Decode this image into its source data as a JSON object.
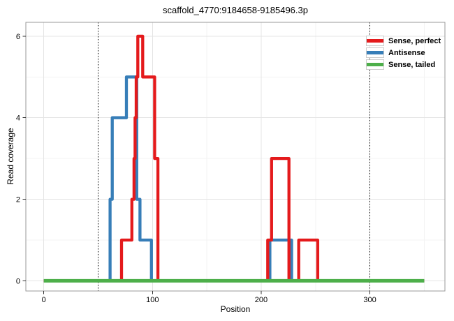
{
  "title": "scaffold_4770:9184658-9185496.3p",
  "colors": {
    "background": "#ffffff",
    "grid_major": "#e4e4e4",
    "grid_minor": "#f3f3f3",
    "panel_border": "#999999",
    "tick": "#333333",
    "text": "#000000",
    "reference_line": "#000000"
  },
  "legend": {
    "position": "top-right",
    "entries": [
      {
        "label": "Sense, perfect",
        "color": "#E41A1C"
      },
      {
        "label": "Antisense",
        "color": "#377EB8"
      },
      {
        "label": "Sense, tailed",
        "color": "#4DAF4A"
      }
    ]
  },
  "chart_data": {
    "type": "line",
    "subtype": "step-coverage-profile",
    "title": "scaffold_4770:9184658-9185496.3p",
    "xlabel": "Position",
    "ylabel": "Read coverage",
    "xlim": [
      -16.5,
      369
    ],
    "ylim": [
      -0.25,
      6.34
    ],
    "x_ticks": [
      0,
      100,
      200,
      300
    ],
    "y_ticks": [
      0,
      2,
      4,
      6
    ],
    "x_minor_gridlines": [
      50,
      150,
      250,
      350
    ],
    "y_minor_gridlines": [
      1,
      3,
      5
    ],
    "grid": true,
    "reference_vlines": {
      "positions": [
        50,
        300
      ],
      "style": "dotted"
    },
    "series": [
      {
        "name": "Sense, perfect",
        "color": "#E41A1C",
        "draw_order": 2,
        "line_width": 4.3,
        "points": [
          [
            0,
            0
          ],
          [
            71.5,
            0
          ],
          [
            71.5,
            1
          ],
          [
            81,
            1
          ],
          [
            81,
            2
          ],
          [
            83,
            2
          ],
          [
            83,
            3
          ],
          [
            84,
            3
          ],
          [
            84,
            4
          ],
          [
            85,
            4
          ],
          [
            85,
            5
          ],
          [
            86.5,
            5
          ],
          [
            86.5,
            6
          ],
          [
            91,
            6
          ],
          [
            91,
            5
          ],
          [
            102,
            5
          ],
          [
            102,
            3
          ],
          [
            105,
            3
          ],
          [
            105,
            0
          ],
          [
            206,
            0
          ],
          [
            206,
            1
          ],
          [
            209.5,
            1
          ],
          [
            209.5,
            3
          ],
          [
            225.5,
            3
          ],
          [
            225.5,
            0
          ],
          [
            234.5,
            0
          ],
          [
            234.5,
            1
          ],
          [
            252,
            1
          ],
          [
            252,
            0
          ],
          [
            350,
            0
          ]
        ]
      },
      {
        "name": "Antisense",
        "color": "#377EB8",
        "draw_order": 1,
        "line_width": 4.3,
        "points": [
          [
            0,
            0
          ],
          [
            61,
            0
          ],
          [
            61,
            2
          ],
          [
            63,
            2
          ],
          [
            63,
            4
          ],
          [
            76,
            4
          ],
          [
            76,
            5
          ],
          [
            85.5,
            5
          ],
          [
            85.5,
            2
          ],
          [
            88.5,
            2
          ],
          [
            88.5,
            1
          ],
          [
            99,
            1
          ],
          [
            99,
            0
          ],
          [
            208,
            0
          ],
          [
            208,
            1
          ],
          [
            228,
            1
          ],
          [
            228,
            0
          ],
          [
            350,
            0
          ]
        ]
      },
      {
        "name": "Sense, tailed",
        "color": "#4DAF4A",
        "draw_order": 3,
        "line_width": 5,
        "points": [
          [
            0,
            0
          ],
          [
            350,
            0
          ]
        ]
      }
    ]
  }
}
